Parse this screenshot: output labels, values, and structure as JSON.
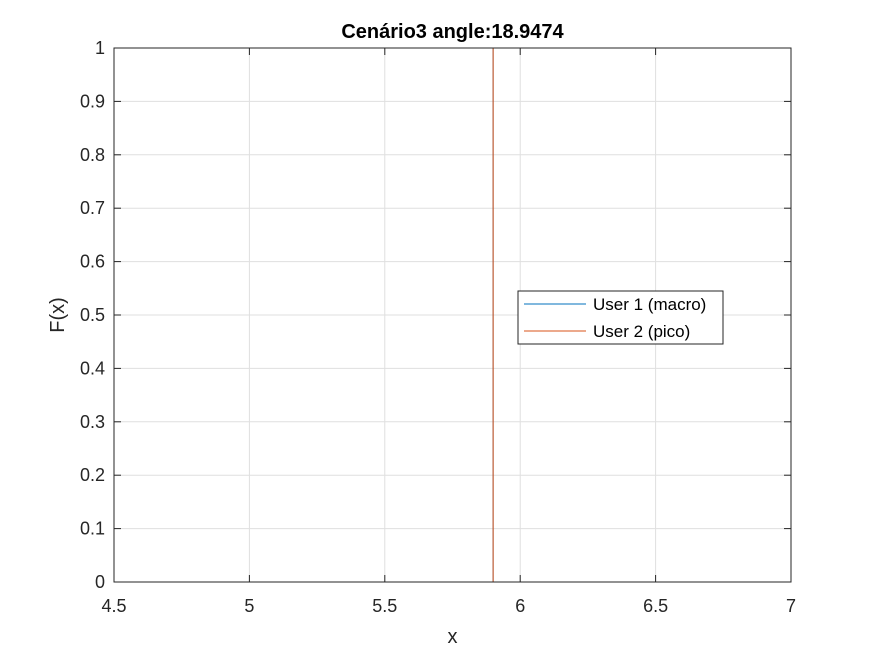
{
  "chart_data": {
    "type": "line",
    "title": "Cenário3 angle:18.9474",
    "xlabel": "x",
    "ylabel": "F(x)",
    "xlim": [
      4.5,
      7
    ],
    "ylim": [
      0,
      1
    ],
    "xticks": [
      4.5,
      5,
      5.5,
      6,
      6.5,
      7
    ],
    "xtick_labels": [
      "4.5",
      "5",
      "5.5",
      "6",
      "6.5",
      "7"
    ],
    "yticks": [
      0,
      0.1,
      0.2,
      0.3,
      0.4,
      0.5,
      0.6,
      0.7,
      0.8,
      0.9,
      1
    ],
    "ytick_labels": [
      "0",
      "0.1",
      "0.2",
      "0.3",
      "0.4",
      "0.5",
      "0.6",
      "0.7",
      "0.8",
      "0.9",
      "1"
    ],
    "grid": true,
    "legend_position": "right",
    "series": [
      {
        "name": "User 1 (macro)",
        "color": "#0072BD",
        "x": [
          5.9,
          5.9
        ],
        "y": [
          0,
          1
        ]
      },
      {
        "name": "User 2 (pico)",
        "color": "#D95319",
        "x": [
          5.9,
          5.9
        ],
        "y": [
          0,
          1
        ]
      }
    ]
  }
}
